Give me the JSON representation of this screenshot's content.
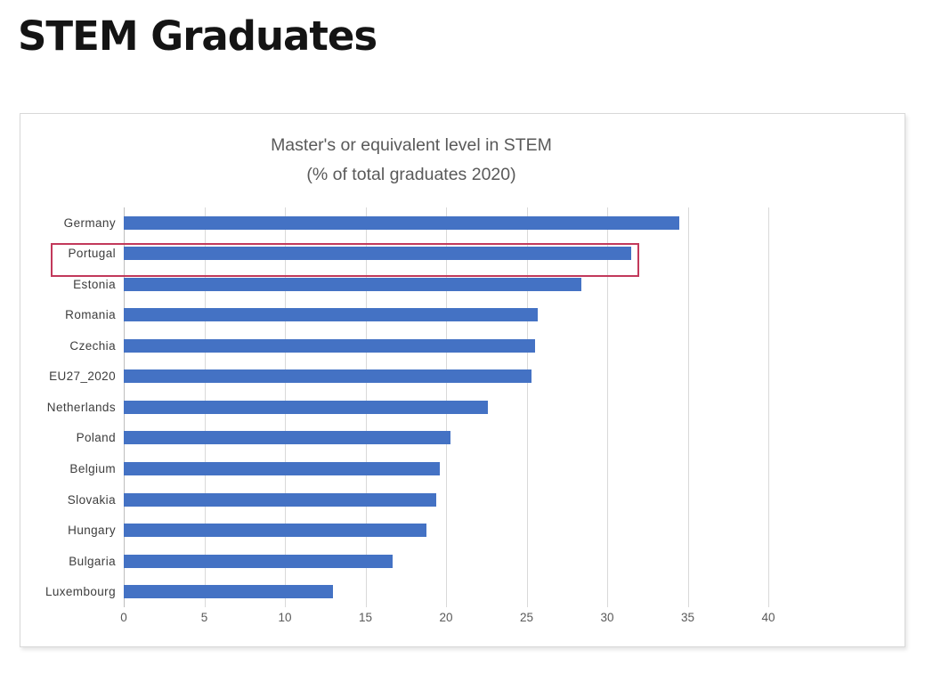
{
  "slide": {
    "title": "STEM Graduates"
  },
  "chart": {
    "title_line1": "Master's or equivalent level in STEM",
    "title_line2": "(% of total graduates 2020)",
    "bar_color": "#4472c4",
    "highlight_color": "#c2395b",
    "gridline_color": "#d9d9d9",
    "title_color": "#595959"
  },
  "chart_data": {
    "type": "bar",
    "orientation": "horizontal",
    "title": "Master's or equivalent level in STEM (% of total graduates 2020)",
    "categories": [
      "Germany",
      "Portugal",
      "Estonia",
      "Romania",
      "Czechia",
      "EU27_2020",
      "Netherlands",
      "Poland",
      "Belgium",
      "Slovakia",
      "Hungary",
      "Bulgaria",
      "Luxembourg"
    ],
    "values": [
      34.5,
      31.5,
      28.4,
      25.7,
      25.5,
      25.3,
      22.6,
      20.3,
      19.6,
      19.4,
      18.8,
      16.7,
      13.0
    ],
    "highlighted_category": "Portugal",
    "xlabel": "",
    "ylabel": "",
    "xlim": [
      0,
      40
    ],
    "xticks": [
      0,
      5,
      10,
      15,
      20,
      25,
      30,
      35,
      40
    ],
    "grid": true,
    "legend": false
  }
}
